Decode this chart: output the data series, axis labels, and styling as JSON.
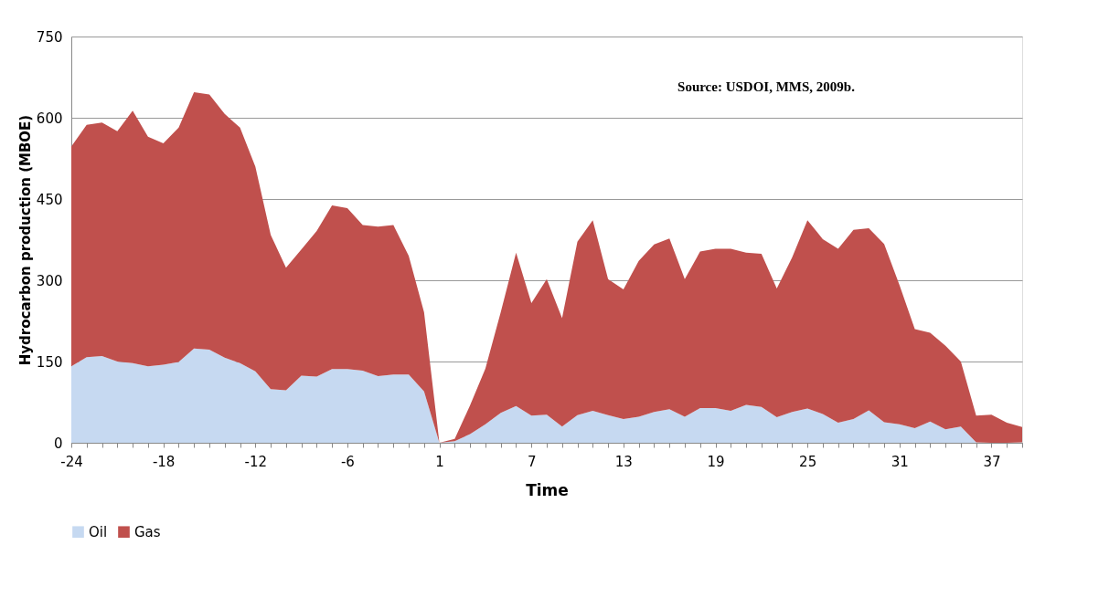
{
  "chart_data": {
    "type": "area",
    "stacked": true,
    "xlabel": "Time",
    "ylabel": "Hydrocarbon production (MBOE)",
    "annotations": [
      "Source: USDOI, MMS, 2009b."
    ],
    "categories": [
      "-24",
      null,
      null,
      null,
      null,
      null,
      "-18",
      null,
      null,
      null,
      null,
      null,
      "-12",
      null,
      null,
      null,
      null,
      null,
      "-6",
      null,
      null,
      null,
      null,
      null,
      "1",
      null,
      null,
      null,
      null,
      null,
      "7",
      null,
      null,
      null,
      null,
      null,
      "13",
      null,
      null,
      null,
      null,
      null,
      "19",
      null,
      null,
      null,
      null,
      null,
      "25",
      null,
      null,
      null,
      null,
      null,
      "31",
      null,
      null,
      null,
      null,
      null,
      "37",
      null,
      null
    ],
    "ylim": [
      0,
      750
    ],
    "yticks": [
      0,
      150,
      300,
      450,
      600,
      750
    ],
    "grid": "y",
    "legend": "bottom",
    "series": [
      {
        "name": "Oil",
        "color": "#c6d9f1",
        "values": [
          141,
          158,
          160,
          150,
          147,
          141,
          144,
          149,
          174,
          172,
          157,
          147,
          132,
          99,
          97,
          124,
          122,
          136,
          136,
          133,
          123,
          126,
          126,
          95,
          0,
          3,
          16,
          34,
          55,
          68,
          50,
          52,
          30,
          51,
          59,
          51,
          44,
          48,
          57,
          62,
          48,
          64,
          64,
          59,
          70,
          66,
          47,
          57,
          63,
          53,
          37,
          44,
          60,
          38,
          34,
          27,
          39,
          25,
          30,
          1,
          0,
          0,
          1
        ]
      },
      {
        "name": "Gas",
        "color": "#c0504d",
        "values": [
          406,
          429,
          431,
          425,
          466,
          424,
          409,
          433,
          473,
          471,
          450,
          435,
          378,
          285,
          226,
          233,
          269,
          302,
          297,
          269,
          276,
          276,
          219,
          146,
          0,
          4,
          53,
          103,
          186,
          283,
          208,
          250,
          200,
          320,
          352,
          251,
          239,
          288,
          309,
          315,
          254,
          289,
          294,
          299,
          281,
          283,
          238,
          285,
          348,
          323,
          321,
          349,
          336,
          329,
          257,
          183,
          164,
          154,
          120,
          49,
          52,
          37,
          28
        ]
      }
    ]
  }
}
